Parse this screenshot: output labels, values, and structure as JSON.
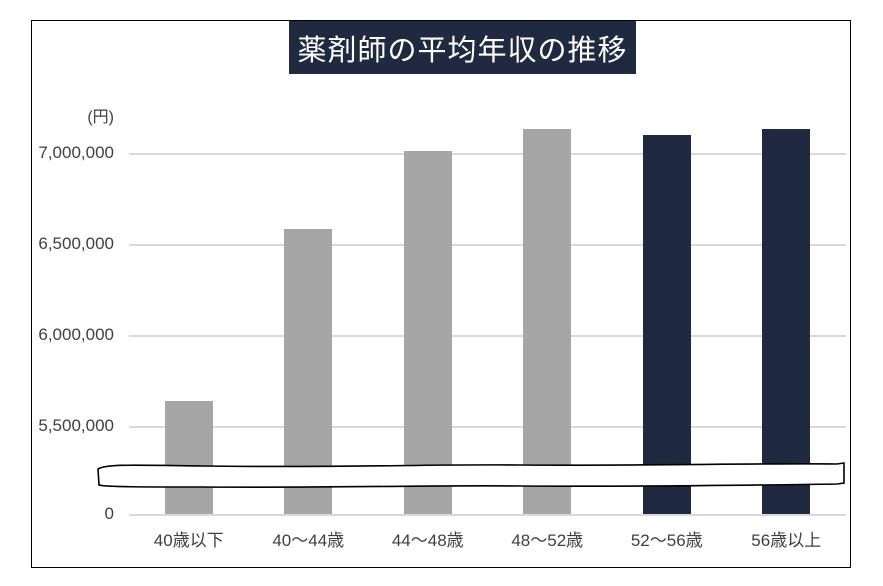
{
  "colors": {
    "bar_gray": "#A6A6A6",
    "bar_navy": "#1F2A40",
    "title_bg": "#1F2A40",
    "title_text": "#FFFFFF",
    "gridline": "#D9D9D9",
    "axis_text": "#404040",
    "frame_border": "#000000"
  },
  "chart_data": {
    "type": "bar",
    "title": "薬剤師の平均年収の推移",
    "ylabel": "(円)",
    "xlabel": "",
    "categories": [
      "40歳以下",
      "40〜44歳",
      "44〜48歳",
      "48〜52歳",
      "52〜56歳",
      "56歳以上"
    ],
    "values": [
      5640000,
      6580000,
      7010000,
      7130000,
      7100000,
      7130000
    ],
    "highlight": [
      false,
      false,
      false,
      false,
      true,
      true
    ],
    "y_ticks": [
      {
        "label": "0",
        "value": 0
      },
      {
        "label": "5,500,000",
        "value": 5500000
      },
      {
        "label": "6,000,000",
        "value": 6000000
      },
      {
        "label": "6,500,000",
        "value": 6500000
      },
      {
        "label": "7,000,000",
        "value": 7000000
      }
    ],
    "ylim": [
      5500000,
      7250000
    ],
    "grid": true,
    "legend": "none",
    "axis_break": {
      "present": true,
      "between": [
        0,
        5500000
      ]
    }
  }
}
